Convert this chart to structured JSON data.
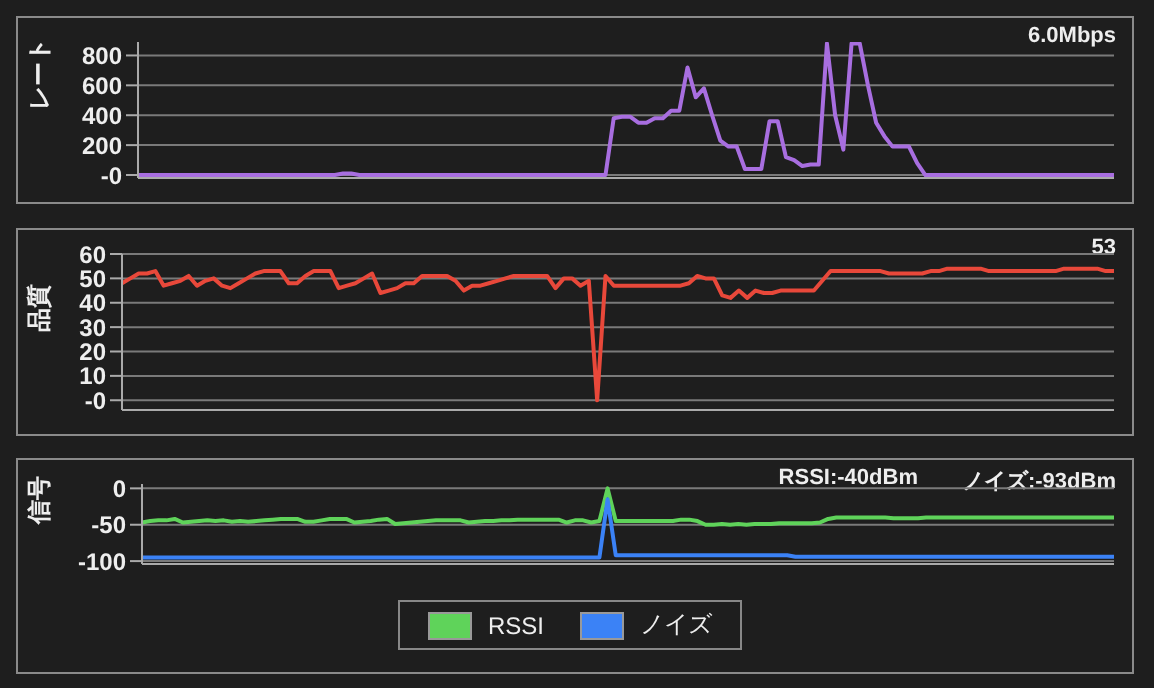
{
  "chart_data": [
    {
      "type": "line",
      "ylabel": "レート",
      "annotations": [
        "6.0Mbps"
      ],
      "categories": [
        null,
        null,
        null,
        null,
        null,
        null,
        null,
        null,
        null,
        null,
        null,
        null,
        null,
        null,
        null,
        null,
        null,
        null,
        null,
        null,
        null,
        null,
        null,
        null,
        null,
        null,
        null,
        null,
        null,
        null,
        null,
        null,
        null,
        null,
        null,
        null,
        null,
        null,
        null,
        null,
        null,
        null,
        null,
        null,
        null,
        null,
        null,
        null,
        null,
        null,
        null,
        null,
        null,
        null,
        null,
        null,
        null,
        null,
        null,
        null,
        null,
        null,
        null,
        null,
        null,
        null,
        null,
        null,
        null,
        null,
        null,
        null,
        null,
        null,
        null,
        null,
        null,
        null,
        null,
        null,
        null,
        null,
        null,
        null,
        null,
        null,
        null,
        null,
        null,
        null,
        null,
        null,
        null,
        null,
        null,
        null,
        null,
        null,
        null,
        null,
        null,
        null,
        null,
        null,
        null,
        null,
        null,
        null,
        null,
        null,
        null,
        null,
        null,
        null,
        null,
        null,
        null,
        null,
        null,
        null
      ],
      "series": [
        {
          "color": "#a86ee0",
          "values": [
            0,
            0,
            0,
            0,
            0,
            0,
            0,
            0,
            0,
            0,
            0,
            0,
            0,
            0,
            0,
            0,
            0,
            0,
            0,
            0,
            0,
            0,
            0,
            0,
            0,
            10,
            10,
            0,
            0,
            0,
            0,
            0,
            0,
            0,
            0,
            0,
            0,
            0,
            0,
            0,
            0,
            0,
            0,
            0,
            0,
            0,
            0,
            0,
            0,
            0,
            0,
            0,
            0,
            0,
            0,
            0,
            0,
            0,
            380,
            390,
            390,
            350,
            350,
            380,
            380,
            430,
            430,
            720,
            520,
            580,
            400,
            230,
            190,
            190,
            40,
            40,
            40,
            360,
            360,
            120,
            100,
            60,
            70,
            70,
            880,
            400,
            170,
            880,
            880,
            600,
            350,
            260,
            190,
            190,
            190,
            80,
            0,
            0,
            0,
            0,
            0,
            0,
            0,
            0,
            0,
            0,
            0,
            0,
            0,
            0,
            0,
            0,
            0,
            0,
            0,
            0,
            0,
            0,
            0,
            0
          ]
        }
      ],
      "ylim": [
        -20,
        890
      ],
      "yticks": [
        {
          "value": 0,
          "label": "-0"
        },
        200,
        400,
        600,
        800
      ],
      "grid": "y",
      "tick_labels": "y"
    },
    {
      "type": "line",
      "ylabel": "品質",
      "annotations": [
        "53"
      ],
      "categories": [
        null,
        null,
        null,
        null,
        null,
        null,
        null,
        null,
        null,
        null,
        null,
        null,
        null,
        null,
        null,
        null,
        null,
        null,
        null,
        null,
        null,
        null,
        null,
        null,
        null,
        null,
        null,
        null,
        null,
        null,
        null,
        null,
        null,
        null,
        null,
        null,
        null,
        null,
        null,
        null,
        null,
        null,
        null,
        null,
        null,
        null,
        null,
        null,
        null,
        null,
        null,
        null,
        null,
        null,
        null,
        null,
        null,
        null,
        null,
        null,
        null,
        null,
        null,
        null,
        null,
        null,
        null,
        null,
        null,
        null,
        null,
        null,
        null,
        null,
        null,
        null,
        null,
        null,
        null,
        null,
        null,
        null,
        null,
        null,
        null,
        null,
        null,
        null,
        null,
        null,
        null,
        null,
        null,
        null,
        null,
        null,
        null,
        null,
        null,
        null,
        null,
        null,
        null,
        null,
        null,
        null,
        null,
        null,
        null,
        null,
        null,
        null,
        null,
        null,
        null,
        null,
        null,
        null,
        null,
        null
      ],
      "series": [
        {
          "color": "#e8483a",
          "values": [
            48,
            50,
            52,
            52,
            53,
            47,
            48,
            49,
            51,
            47,
            49,
            50,
            47,
            46,
            48,
            50,
            52,
            53,
            53,
            53,
            48,
            48,
            51,
            53,
            53,
            53,
            46,
            47,
            48,
            50,
            52,
            44,
            45,
            46,
            48,
            48,
            51,
            51,
            51,
            51,
            49,
            45,
            47,
            47,
            48,
            49,
            50,
            51,
            51,
            51,
            51,
            51,
            46,
            50,
            50,
            47,
            49,
            0,
            51,
            47,
            47,
            47,
            47,
            47,
            47,
            47,
            47,
            47,
            48,
            51,
            50,
            50,
            43,
            42,
            45,
            42,
            45,
            44,
            44,
            45,
            45,
            45,
            45,
            45,
            49,
            53,
            53,
            53,
            53,
            53,
            53,
            53,
            52,
            52,
            52,
            52,
            52,
            53,
            53,
            54,
            54,
            54,
            54,
            54,
            53,
            53,
            53,
            53,
            53,
            53,
            53,
            53,
            53,
            54,
            54,
            54,
            54,
            54,
            53,
            53
          ]
        }
      ],
      "ylim": [
        -4,
        60
      ],
      "yticks": [
        {
          "value": 0,
          "label": "-0"
        },
        10,
        20,
        30,
        40,
        50,
        60
      ],
      "grid": "y",
      "tick_labels": "y"
    },
    {
      "type": "line",
      "ylabel": "信号",
      "annotations": [
        "RSSI:-40dBm",
        "ノイズ:-93dBm"
      ],
      "categories": [
        null,
        null,
        null,
        null,
        null,
        null,
        null,
        null,
        null,
        null,
        null,
        null,
        null,
        null,
        null,
        null,
        null,
        null,
        null,
        null,
        null,
        null,
        null,
        null,
        null,
        null,
        null,
        null,
        null,
        null,
        null,
        null,
        null,
        null,
        null,
        null,
        null,
        null,
        null,
        null,
        null,
        null,
        null,
        null,
        null,
        null,
        null,
        null,
        null,
        null,
        null,
        null,
        null,
        null,
        null,
        null,
        null,
        null,
        null,
        null,
        null,
        null,
        null,
        null,
        null,
        null,
        null,
        null,
        null,
        null,
        null,
        null,
        null,
        null,
        null,
        null,
        null,
        null,
        null,
        null,
        null,
        null,
        null,
        null,
        null,
        null,
        null,
        null,
        null,
        null,
        null,
        null,
        null,
        null,
        null,
        null,
        null,
        null,
        null,
        null,
        null,
        null,
        null,
        null,
        null,
        null,
        null,
        null,
        null,
        null,
        null,
        null,
        null,
        null,
        null,
        null,
        null,
        null,
        null,
        null
      ],
      "series": [
        {
          "name": "RSSI",
          "color": "#5fd35a",
          "values": [
            -47,
            -45,
            -44,
            -44,
            -42,
            -47,
            -46,
            -45,
            -44,
            -45,
            -44,
            -46,
            -45,
            -46,
            -45,
            -44,
            -43,
            -42,
            -42,
            -42,
            -46,
            -46,
            -44,
            -42,
            -42,
            -42,
            -47,
            -46,
            -45,
            -43,
            -42,
            -49,
            -48,
            -47,
            -46,
            -45,
            -44,
            -44,
            -44,
            -44,
            -47,
            -46,
            -45,
            -45,
            -44,
            -44,
            -43,
            -43,
            -43,
            -43,
            -43,
            -43,
            -47,
            -44,
            -44,
            -47,
            -45,
            0,
            -45,
            -45,
            -45,
            -45,
            -45,
            -45,
            -45,
            -45,
            -43,
            -43,
            -45,
            -50,
            -50,
            -49,
            -50,
            -49,
            -50,
            -49,
            -49,
            -49,
            -48,
            -48,
            -48,
            -48,
            -48,
            -47,
            -42,
            -40,
            -40,
            -40,
            -40,
            -40,
            -40,
            -40,
            -41,
            -41,
            -41,
            -41,
            -40,
            -40,
            -40,
            -40,
            -40,
            -40,
            -40,
            -40,
            -40,
            -40,
            -40,
            -40,
            -40,
            -40,
            -40,
            -40,
            -40,
            -40,
            -40,
            -40,
            -40,
            -40,
            -40,
            -40
          ]
        },
        {
          "name": "ノイズ",
          "color": "#3b82f6",
          "values": [
            -95,
            -95,
            -95,
            -95,
            -95,
            -95,
            -95,
            -95,
            -95,
            -95,
            -95,
            -95,
            -95,
            -95,
            -95,
            -95,
            -95,
            -95,
            -95,
            -95,
            -95,
            -95,
            -95,
            -95,
            -95,
            -95,
            -95,
            -95,
            -95,
            -95,
            -95,
            -95,
            -95,
            -95,
            -95,
            -95,
            -95,
            -95,
            -95,
            -95,
            -95,
            -95,
            -95,
            -95,
            -95,
            -95,
            -95,
            -95,
            -95,
            -95,
            -95,
            -95,
            -95,
            -95,
            -95,
            -95,
            -95,
            -15,
            -92,
            -92,
            -92,
            -92,
            -92,
            -92,
            -92,
            -92,
            -92,
            -92,
            -92,
            -92,
            -92,
            -92,
            -92,
            -92,
            -92,
            -92,
            -92,
            -92,
            -92,
            -92,
            -94,
            -94,
            -94,
            -94,
            -94,
            -94,
            -94,
            -94,
            -94,
            -94,
            -94,
            -94,
            -94,
            -94,
            -94,
            -94,
            -94,
            -94,
            -94,
            -94,
            -94,
            -94,
            -94,
            -94,
            -94,
            -94,
            -94,
            -94,
            -94,
            -94,
            -94,
            -94,
            -94,
            -94,
            -94,
            -94,
            -94,
            -94,
            -94,
            -94
          ]
        }
      ],
      "ylim": [
        -104,
        6
      ],
      "yticks": [
        -100,
        -50,
        0
      ],
      "grid": "y",
      "tick_labels": "y",
      "legend": "bottom"
    }
  ]
}
